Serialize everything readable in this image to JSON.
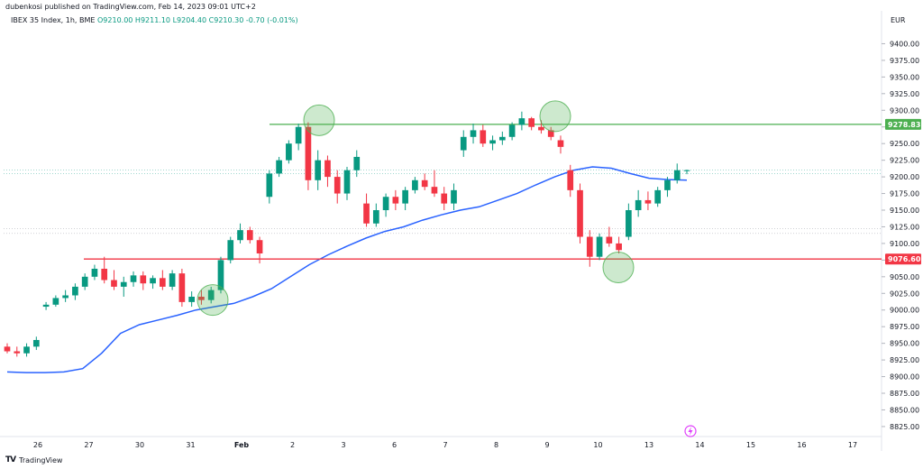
{
  "header": {
    "publisher": "dubenkosi published on TradingView.com, Feb 14, 2023 09:01 UTC+2",
    "symbol": "IBEX 35 Index, 1h, BME",
    "ohlc": "O9210.00  H9211.10  L9204.40  C9210.30  -0.70 (-0.01%)"
  },
  "footer": {
    "logo_text": "TradingView"
  },
  "colors": {
    "up": "#089981",
    "down": "#f23645",
    "ma": "#2962ff",
    "support": "#f23645",
    "resistance": "#4caf50",
    "circle": "#4caf50"
  },
  "chart_data": {
    "type": "candlestick",
    "currency": "EUR",
    "ylim": [
      8810,
      9425
    ],
    "y_ticks": [
      "9400.00",
      "9375.00",
      "9350.00",
      "9325.00",
      "9300.00",
      "9275.00",
      "9250.00",
      "9225.00",
      "9200.00",
      "9175.00",
      "9150.00",
      "9125.00",
      "9100.00",
      "9075.00",
      "9050.00",
      "9025.00",
      "9000.00",
      "8975.00",
      "8950.00",
      "8925.00",
      "8900.00",
      "8875.00",
      "8850.00",
      "8825.00"
    ],
    "x_ticks": [
      "26",
      "27",
      "30",
      "31",
      "Feb",
      "2",
      "3",
      "6",
      "7",
      "8",
      "9",
      "10",
      "13",
      "14",
      "15",
      "16",
      "17"
    ],
    "resistance": {
      "value": 9278.83,
      "label": "9278.83"
    },
    "support": {
      "value": 9076.6,
      "label": "9076.60"
    },
    "ma": [
      8907,
      8906,
      8906,
      8907,
      8912,
      8935,
      8965,
      8978,
      8985,
      8992,
      9000,
      9005,
      9010,
      9020,
      9032,
      9050,
      9068,
      9083,
      9096,
      9108,
      9118,
      9125,
      9135,
      9143,
      9150,
      9155,
      9165,
      9175,
      9188,
      9200,
      9210,
      9215,
      9213,
      9205,
      9198,
      9196,
      9195
    ],
    "candles": [
      [
        8945,
        8950,
        8935,
        8938
      ],
      [
        8938,
        8945,
        8930,
        8935
      ],
      [
        8935,
        8950,
        8930,
        8945
      ],
      [
        8945,
        8960,
        8940,
        8955
      ],
      [
        9005,
        9012,
        9000,
        9008
      ],
      [
        9008,
        9022,
        9005,
        9018
      ],
      [
        9018,
        9030,
        9012,
        9022
      ],
      [
        9022,
        9040,
        9015,
        9035
      ],
      [
        9035,
        9055,
        9030,
        9050
      ],
      [
        9050,
        9068,
        9045,
        9062
      ],
      [
        9062,
        9080,
        9040,
        9045
      ],
      [
        9045,
        9060,
        9030,
        9035
      ],
      [
        9035,
        9050,
        9020,
        9042
      ],
      [
        9042,
        9058,
        9035,
        9052
      ],
      [
        9052,
        9058,
        9030,
        9040
      ],
      [
        9040,
        9052,
        9032,
        9048
      ],
      [
        9048,
        9060,
        9030,
        9035
      ],
      [
        9035,
        9060,
        9030,
        9055
      ],
      [
        9055,
        9062,
        9005,
        9012
      ],
      [
        9012,
        9028,
        9005,
        9020
      ],
      [
        9020,
        9030,
        9008,
        9015
      ],
      [
        9015,
        9035,
        9010,
        9030
      ],
      [
        9030,
        9080,
        9025,
        9075
      ],
      [
        9075,
        9110,
        9070,
        9105
      ],
      [
        9105,
        9130,
        9100,
        9120
      ],
      [
        9120,
        9125,
        9100,
        9105
      ],
      [
        9105,
        9110,
        9070,
        9085
      ],
      [
        9170,
        9210,
        9160,
        9205
      ],
      [
        9205,
        9230,
        9200,
        9225
      ],
      [
        9225,
        9255,
        9220,
        9250
      ],
      [
        9250,
        9280,
        9240,
        9275
      ],
      [
        9275,
        9282,
        9180,
        9195
      ],
      [
        9195,
        9240,
        9180,
        9225
      ],
      [
        9225,
        9232,
        9185,
        9200
      ],
      [
        9200,
        9210,
        9160,
        9175
      ],
      [
        9175,
        9215,
        9165,
        9210
      ],
      [
        9210,
        9240,
        9200,
        9230
      ],
      [
        9160,
        9175,
        9125,
        9130
      ],
      [
        9130,
        9160,
        9125,
        9150
      ],
      [
        9150,
        9175,
        9140,
        9170
      ],
      [
        9170,
        9180,
        9150,
        9160
      ],
      [
        9160,
        9185,
        9150,
        9180
      ],
      [
        9180,
        9200,
        9175,
        9195
      ],
      [
        9195,
        9205,
        9180,
        9185
      ],
      [
        9185,
        9210,
        9170,
        9175
      ],
      [
        9175,
        9185,
        9150,
        9160
      ],
      [
        9160,
        9190,
        9150,
        9180
      ],
      [
        9240,
        9270,
        9230,
        9260
      ],
      [
        9260,
        9280,
        9250,
        9270
      ],
      [
        9270,
        9278,
        9245,
        9250
      ],
      [
        9250,
        9262,
        9240,
        9255
      ],
      [
        9255,
        9268,
        9248,
        9260
      ],
      [
        9260,
        9282,
        9255,
        9278
      ],
      [
        9278,
        9298,
        9270,
        9288
      ],
      [
        9288,
        9290,
        9270,
        9275
      ],
      [
        9275,
        9285,
        9265,
        9270
      ],
      [
        9270,
        9275,
        9255,
        9260
      ],
      [
        9255,
        9262,
        9235,
        9245
      ],
      [
        9210,
        9218,
        9170,
        9180
      ],
      [
        9180,
        9190,
        9100,
        9110
      ],
      [
        9110,
        9120,
        9065,
        9080
      ],
      [
        9080,
        9115,
        9075,
        9110
      ],
      [
        9110,
        9125,
        9095,
        9100
      ],
      [
        9100,
        9110,
        9085,
        9090
      ],
      [
        9110,
        9160,
        9105,
        9150
      ],
      [
        9150,
        9180,
        9140,
        9165
      ],
      [
        9165,
        9178,
        9150,
        9160
      ],
      [
        9160,
        9185,
        9155,
        9180
      ],
      [
        9180,
        9200,
        9170,
        9195
      ],
      [
        9195,
        9220,
        9190,
        9210
      ],
      [
        9210,
        9211,
        9204,
        9210
      ]
    ]
  }
}
